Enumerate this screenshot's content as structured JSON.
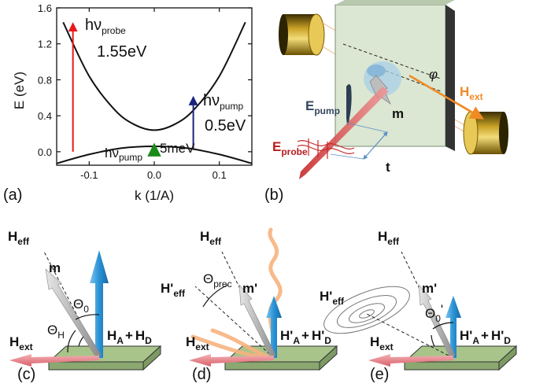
{
  "panels": {
    "a": {
      "label": "(a)",
      "chart_data": {
        "type": "line",
        "xlabel": "k (1/A)",
        "ylabel": "E (eV)",
        "xlim": [
          -0.15,
          0.15
        ],
        "ylim": [
          -0.15,
          1.6
        ],
        "xticks": [
          "-0.1",
          "0.0",
          "0.1"
        ],
        "yticks": [
          "0.0",
          "0.4",
          "0.8",
          "1.2",
          "1.6"
        ],
        "series": [
          {
            "x": [
              -0.14,
              -0.1,
              -0.06,
              -0.03,
              0,
              0.03,
              0.06,
              0.1,
              0.14
            ],
            "y": [
              1.44,
              0.84,
              0.46,
              0.3,
              0.24,
              0.3,
              0.46,
              0.84,
              1.44
            ]
          },
          {
            "x": [
              -0.15,
              -0.1,
              -0.05,
              0,
              0.05,
              0.1,
              0.15
            ],
            "y": [
              -0.13,
              -0.03,
              0.04,
              0.06,
              0.04,
              -0.03,
              -0.13
            ]
          }
        ],
        "annotations": {
          "probe_h": "hν",
          "probe_sub": "probe",
          "probe_val": "1.55eV",
          "pump_h": "hν",
          "pump_sub": "pump",
          "pump_val": "0.5eV",
          "thz_h": "hν",
          "thz_sub": "pump",
          "thz_val": "5meV"
        },
        "arrows": {
          "probe": {
            "x": -0.125,
            "y0": 0.0,
            "y1": 1.42,
            "color": "#e8191c"
          },
          "pump": {
            "x": 0.06,
            "y0": 0.04,
            "y1": 0.6,
            "color": "#1a237e"
          },
          "thz": {
            "x": 0.0,
            "y0": 0.0,
            "y1": 0.07,
            "color": "#1b8a1b"
          }
        }
      }
    },
    "b": {
      "label": "(b)",
      "phi": "φ",
      "h_ext": "H",
      "h_ext_sub": "ext",
      "e_pump": "E",
      "e_pump_sub": "pump",
      "e_probe": "E",
      "e_probe_sub": "probe",
      "m": "m",
      "t": "t",
      "colors": {
        "h_ext": "#f08a24",
        "e_pump": "#33465c",
        "e_probe": "#b71c1c",
        "plate": "#d9e6d0",
        "magnet": "#c9a227"
      }
    },
    "c": {
      "label": "(c)",
      "h_eff": "H",
      "h_eff_sub": "eff",
      "m": "m",
      "theta0": "Θ",
      "theta0_sub": "0",
      "thetaH": "Θ",
      "thetaH_sub": "H",
      "h_ext": "H",
      "h_ext_sub": "ext",
      "ha_hd": {
        "a": "H",
        "a_sub": "A",
        "plus": "+",
        "d": "H",
        "d_sub": "D"
      }
    },
    "d": {
      "label": "(d)",
      "h_eff": "H",
      "h_eff_sub": "eff",
      "h_eff_p": "H'",
      "h_eff_p_sub": "eff",
      "theta_prec": "Θ",
      "theta_prec_sub": "prec",
      "m_p": "m'",
      "h_ext": "H",
      "h_ext_sub": "ext",
      "ha_hd": {
        "a": "H'",
        "a_sub": "A",
        "plus": "+",
        "d": "H'",
        "d_sub": "D"
      }
    },
    "e": {
      "label": "(e)",
      "h_eff": "H",
      "h_eff_sub": "eff",
      "h_eff_p": "H'",
      "h_eff_p_sub": "eff",
      "m_p": "m'",
      "theta0_p": "Θ",
      "theta0_p_sub": "0",
      "theta0_prime": "'",
      "h_ext": "H",
      "h_ext_sub": "ext",
      "ha_hd": {
        "a": "H'",
        "a_sub": "A",
        "plus": "+",
        "d": "H'",
        "d_sub": "D"
      }
    },
    "colors": {
      "blue_arrow": "#2a93d5",
      "pink_arrow": "#e8828a",
      "gray_arrow": "#9a9a9a",
      "plate": "#a8c48a",
      "orange_wave": "#f6b27e"
    }
  }
}
